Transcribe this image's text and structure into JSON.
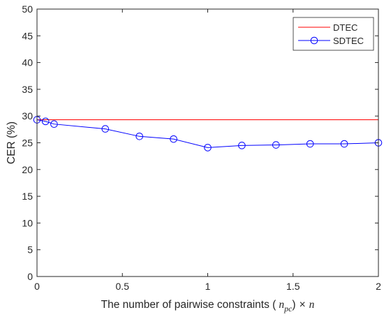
{
  "chart_data": {
    "type": "line",
    "xlabel": {
      "prefix": "The number of pairwise constraints (",
      "var": "n",
      "sub": "pc",
      "mid": ")",
      "times": "×",
      "suffix_var": "n"
    },
    "ylabel": "CER (%)",
    "xlim": [
      0,
      2
    ],
    "ylim": [
      0,
      50
    ],
    "xticks": [
      0,
      0.5,
      1,
      1.5,
      2
    ],
    "xtick_labels": [
      "0",
      "0.5",
      "1",
      "1.5",
      "2"
    ],
    "yticks": [
      0,
      5,
      10,
      15,
      20,
      25,
      30,
      35,
      40,
      45,
      50
    ],
    "ytick_labels": [
      "0",
      "5",
      "10",
      "15",
      "20",
      "25",
      "30",
      "35",
      "40",
      "45",
      "50"
    ],
    "grid": false,
    "legend_position": "top-right",
    "series": [
      {
        "name": "DTEC",
        "color": "#ff0000",
        "marker": "none",
        "x": [
          0,
          2
        ],
        "y": [
          29.3,
          29.3
        ]
      },
      {
        "name": "SDTEC",
        "color": "#0000ff",
        "marker": "circle",
        "x": [
          0,
          0.05,
          0.1,
          0.4,
          0.6,
          0.8,
          1.0,
          1.2,
          1.4,
          1.6,
          1.8,
          2.0
        ],
        "y": [
          29.3,
          29.0,
          28.5,
          27.6,
          26.2,
          25.7,
          24.1,
          24.5,
          24.6,
          24.8,
          24.8,
          25.0
        ]
      }
    ]
  }
}
